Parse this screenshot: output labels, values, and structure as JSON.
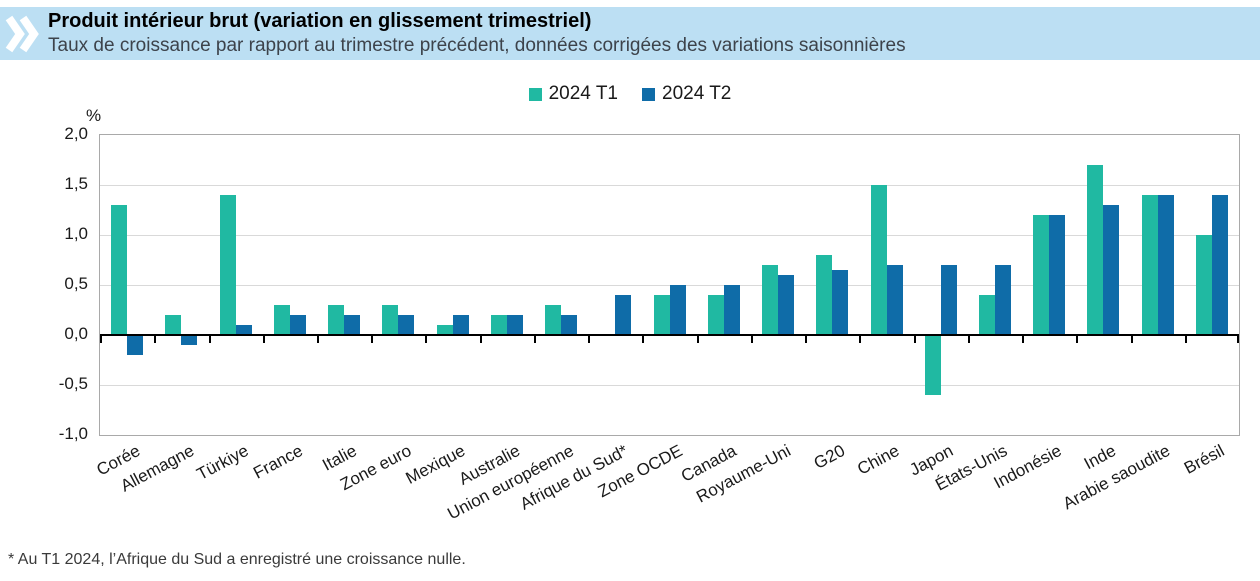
{
  "header": {
    "title": "Produit intérieur brut (variation en glissement trimestriel)",
    "subtitle": "Taux de croissance par rapport au trimestre précédent, données corrigées des variations saisonnières"
  },
  "chart_data": {
    "type": "bar",
    "title": "Produit intérieur brut (variation en glissement trimestriel)",
    "subtitle": "Taux de croissance par rapport au trimestre précédent, données corrigées des variations saisonnières",
    "ylabel": "%",
    "categories": [
      "Corée",
      "Allemagne",
      "Türkiye",
      "France",
      "Italie",
      "Zone euro",
      "Mexique",
      "Australie",
      "Union européenne",
      "Afrique du Sud*",
      "Zone OCDE",
      "Canada",
      "Royaume-Uni",
      "G20",
      "Chine",
      "Japon",
      "États-Unis",
      "Indonésie",
      "Inde",
      "Arabie saoudite",
      "Brésil"
    ],
    "series": [
      {
        "name": "2024 T1",
        "color": "#20b9a2",
        "values": [
          1.3,
          0.2,
          1.4,
          0.3,
          0.3,
          0.3,
          0.1,
          0.2,
          0.3,
          0.0,
          0.4,
          0.4,
          0.7,
          0.8,
          1.5,
          -0.6,
          0.4,
          1.2,
          1.7,
          1.4,
          1.0
        ]
      },
      {
        "name": "2024 T2",
        "color": "#0f6ca8",
        "values": [
          -0.2,
          -0.1,
          0.1,
          0.2,
          0.2,
          0.2,
          0.2,
          0.2,
          0.2,
          0.4,
          0.5,
          0.5,
          0.6,
          0.65,
          0.7,
          0.7,
          0.7,
          1.2,
          1.3,
          1.4,
          1.4
        ]
      }
    ],
    "ylim": [
      -1.0,
      2.0
    ],
    "yticks": [
      {
        "label": "2,0",
        "value": 2.0
      },
      {
        "label": "1,5",
        "value": 1.5
      },
      {
        "label": "1,0",
        "value": 1.0
      },
      {
        "label": "0,5",
        "value": 0.5
      },
      {
        "label": "0,0",
        "value": 0.0
      },
      {
        "label": "-0,5",
        "value": -0.5
      },
      {
        "label": "-1,0",
        "value": -1.0
      }
    ],
    "grid": true,
    "legend_position": "top-center",
    "colors": {
      "grid": "#d9d9d9",
      "frame": "#a9a9a9",
      "zero_axis": "#000000",
      "band_background": "#bcdff3"
    }
  },
  "footnote": "* Au T1 2024, l’Afrique du Sud a enregistré une croissance nulle."
}
